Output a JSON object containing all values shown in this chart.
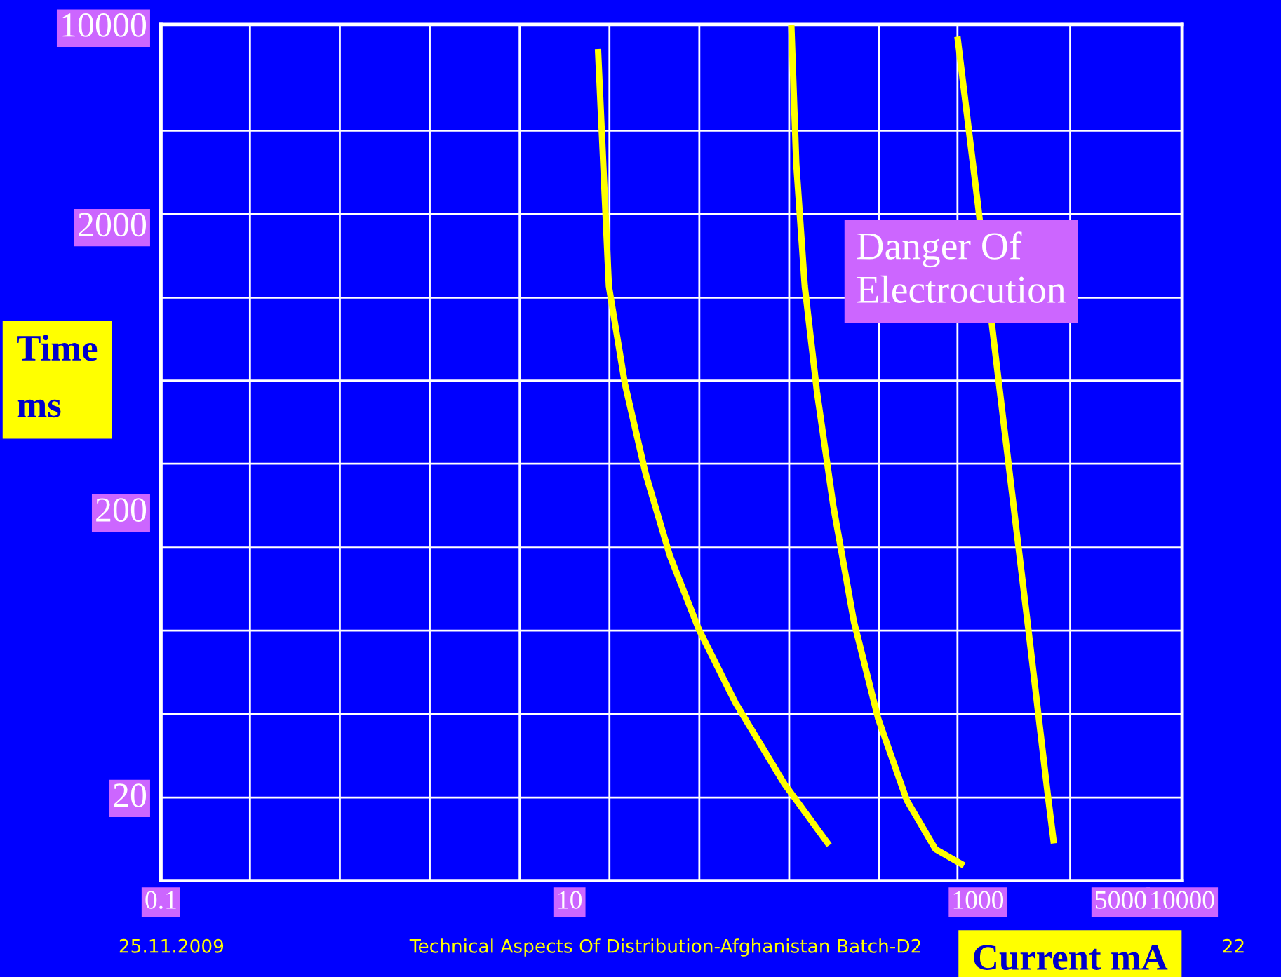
{
  "chart_data": {
    "type": "line",
    "xlabel": "Current mA",
    "ylabel": "Time\nms",
    "log": "xy",
    "grid": true,
    "marker": "none",
    "line_style": "solid",
    "xlim": [
      0.1,
      10000
    ],
    "xticks": [
      0.1,
      10,
      1000,
      5000,
      10000
    ],
    "ylim": [
      10,
      10000
    ],
    "yticks": [
      20,
      200,
      2000,
      10000
    ],
    "series": [
      {
        "color": "#ffff00",
        "x": [
          13.8,
          15.6,
          18.7,
          23.6,
          31,
          43,
          65,
          113,
          187
        ],
        "values": [
          8200,
          1210,
          550,
          267,
          138,
          76,
          42,
          21.8,
          13.3
        ]
      },
      {
        "color": "#ffff00",
        "x": [
          122,
          129,
          142,
          163,
          196,
          247,
          325,
          449,
          619,
          855
        ],
        "values": [
          10000,
          3260,
          1210,
          515,
          205,
          81,
          36.9,
          19.1,
          12.9,
          11.3
        ]
      },
      {
        "color": "#ffff00",
        "x": [
          794,
          1000,
          1200,
          1413,
          1770,
          2208,
          2355
        ],
        "values": [
          9060,
          2340,
          766,
          288,
          75,
          19.5,
          13.5
        ]
      }
    ],
    "annotations": [
      "Danger Of\nElectrocution",
      "25.11.2009",
      "Technical Aspects Of Distribution-Afghanistan Batch-D2",
      "22"
    ]
  }
}
